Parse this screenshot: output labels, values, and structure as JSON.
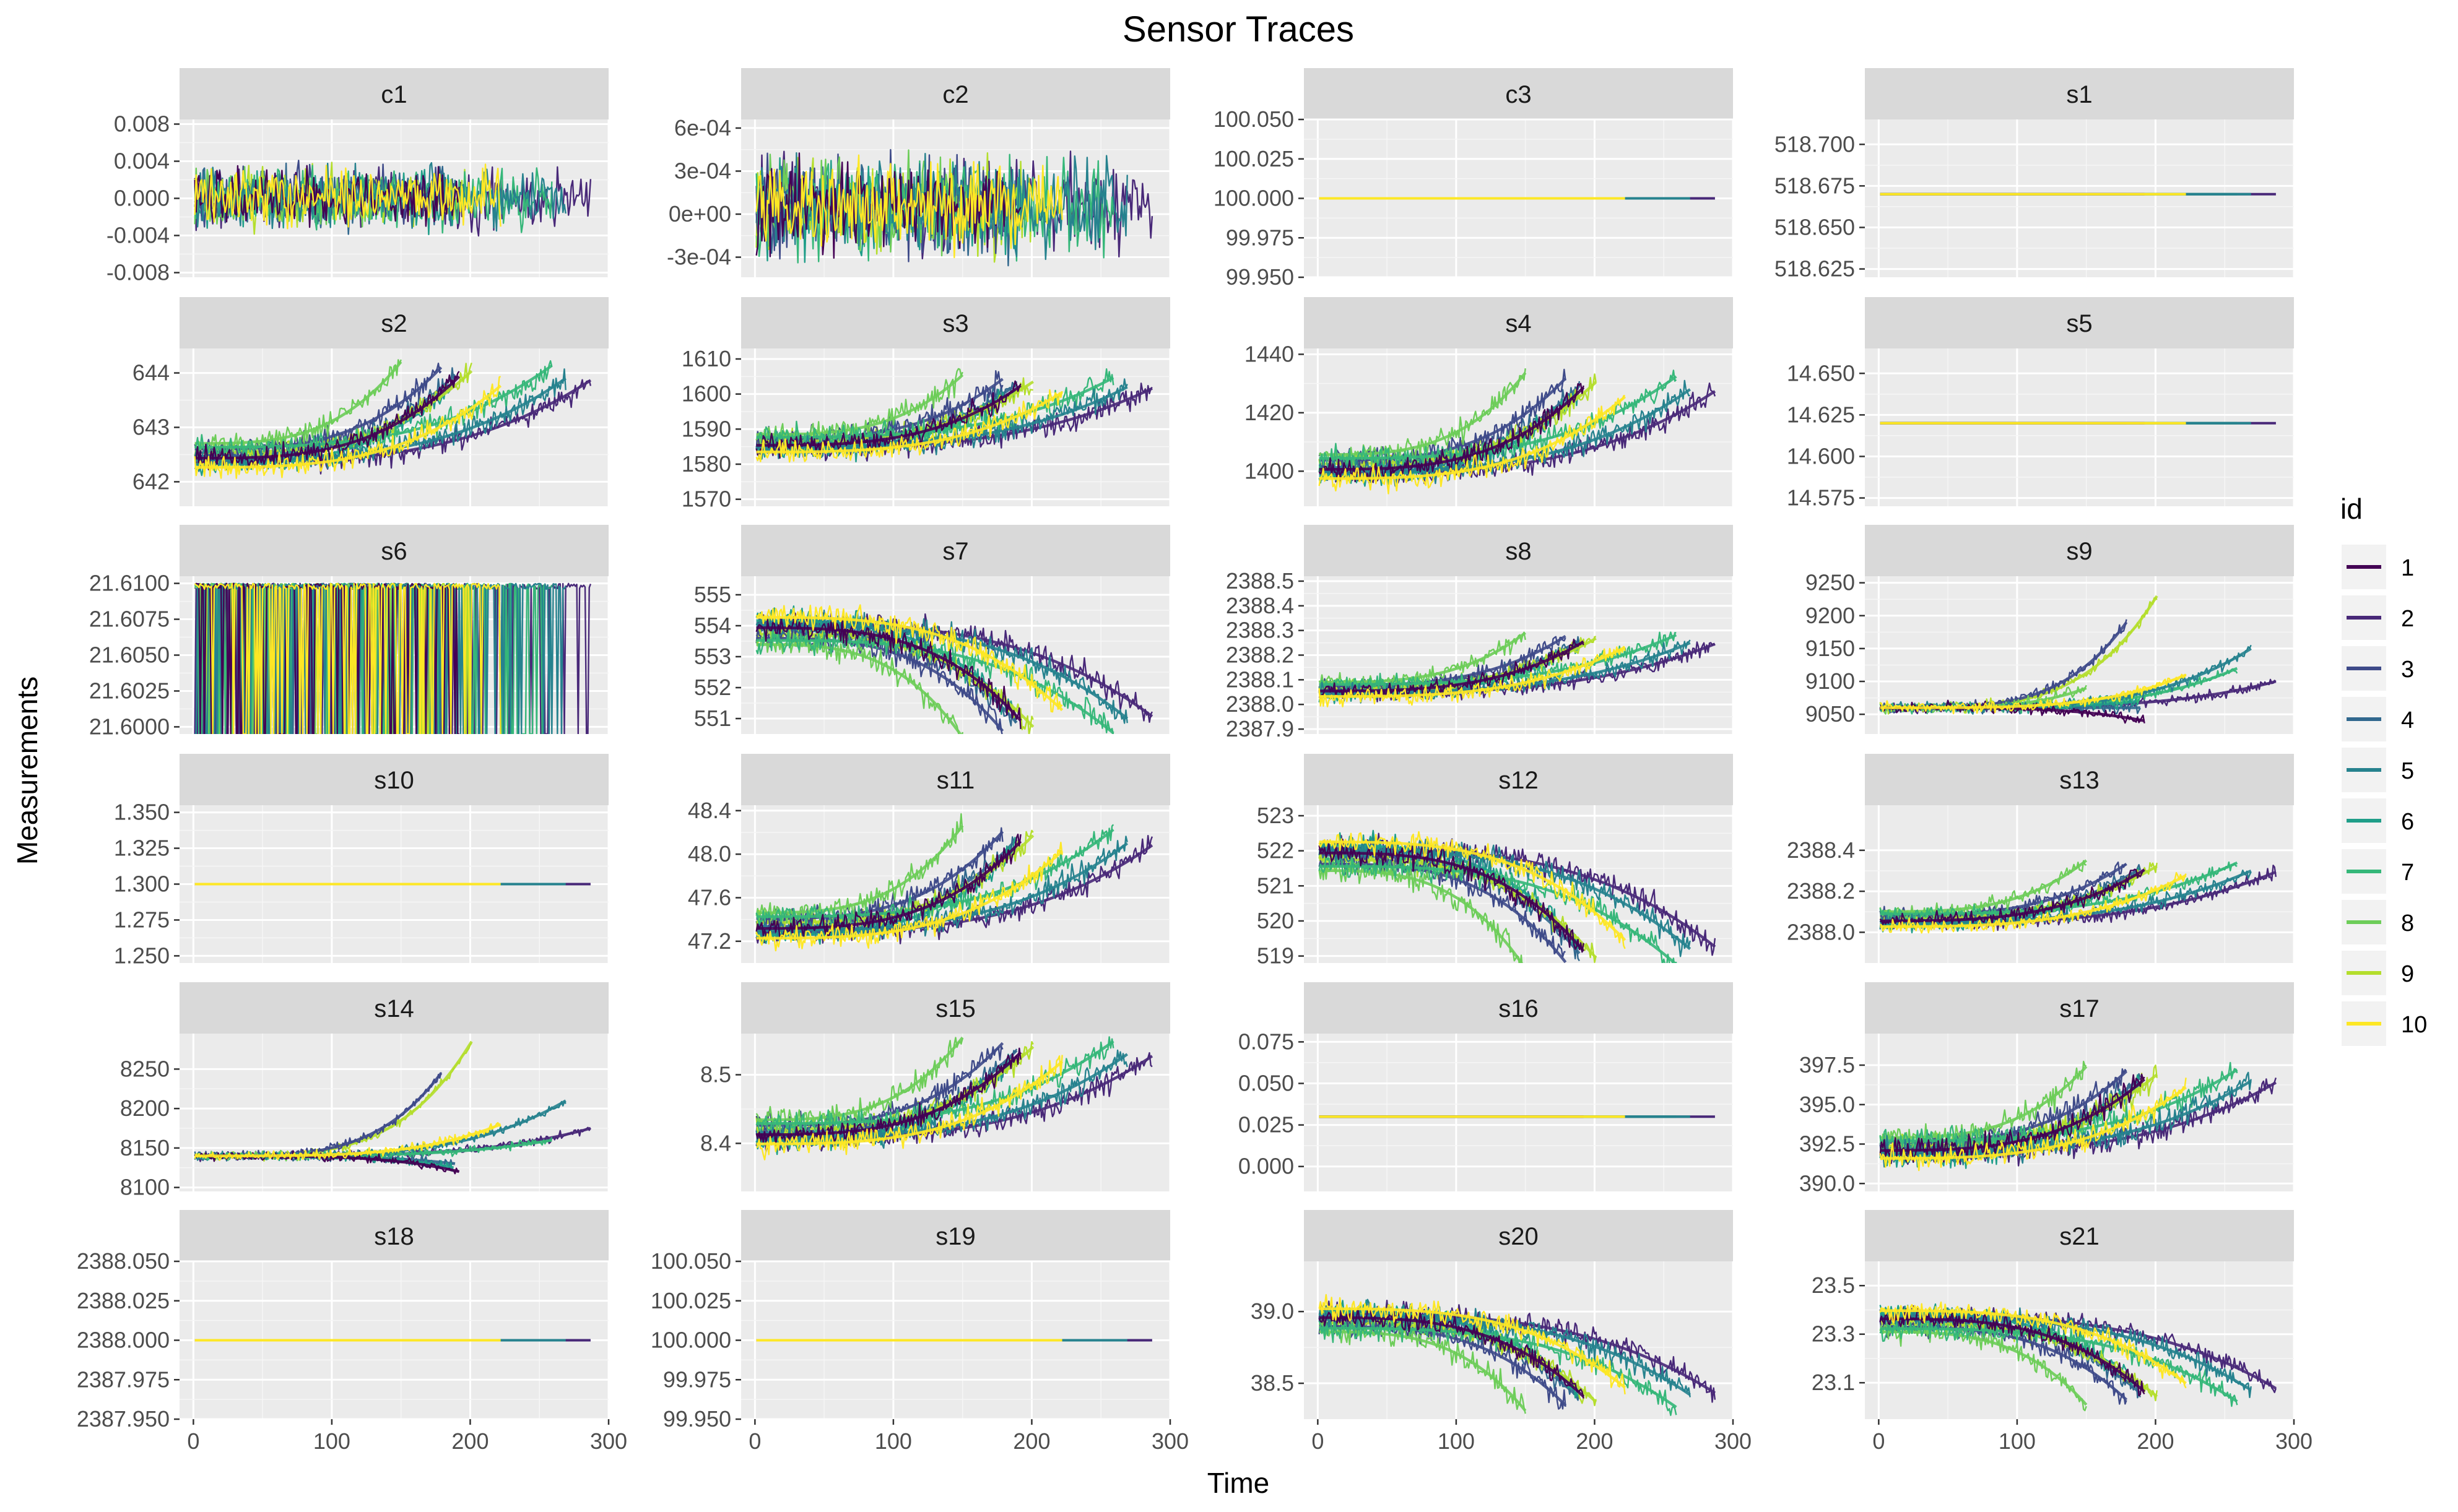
{
  "chart_data": {
    "type": "line",
    "title": "Sensor Traces",
    "xlabel": "Time",
    "ylabel": "Measurements",
    "xlim": [
      -10,
      300
    ],
    "x_ticks": [
      0,
      100,
      200,
      300
    ],
    "x_tick_labels": [
      "0",
      "100",
      "200",
      "300"
    ],
    "legend": {
      "title": "id",
      "position": "right",
      "entries": [
        "1",
        "2",
        "3",
        "4",
        "5",
        "6",
        "7",
        "8",
        "9",
        "10"
      ],
      "colors": [
        "#440154",
        "#482878",
        "#3E4A89",
        "#31688E",
        "#26828E",
        "#1F9E89",
        "#35B779",
        "#6DCD59",
        "#B4DE2C",
        "#FDE725"
      ]
    },
    "series_lengths": [
      192,
      287,
      179,
      189,
      269,
      188,
      259,
      150,
      201,
      222
    ],
    "panels": [
      {
        "name": "c1",
        "kind": "noise",
        "ylim": [
          -0.0085,
          0.0085
        ],
        "ticks": [
          -0.008,
          -0.004,
          0.0,
          0.004,
          0.008
        ],
        "tick_labels": [
          "-0.008",
          "-0.004",
          "0.000",
          "0.004",
          "0.008"
        ],
        "base": 0.0,
        "amp": 0.003
      },
      {
        "name": "c2",
        "kind": "noise",
        "ylim": [
          -0.00044,
          0.00066
        ],
        "ticks": [
          -0.0003,
          0.0,
          0.0003,
          0.0006
        ],
        "tick_labels": [
          "-3e-04",
          "0e+00",
          "3e-04",
          "6e-04"
        ],
        "base": 5e-05,
        "amp": 0.0003
      },
      {
        "name": "c3",
        "kind": "flat",
        "ylim": [
          99.95,
          100.05
        ],
        "ticks": [
          99.95,
          99.975,
          100.0,
          100.025,
          100.05
        ],
        "tick_labels": [
          "99.950",
          "99.975",
          "100.000",
          "100.025",
          "100.050"
        ],
        "base": 100.0
      },
      {
        "name": "s1",
        "kind": "flat",
        "ylim": [
          518.62,
          518.715
        ],
        "ticks": [
          518.625,
          518.65,
          518.675,
          518.7
        ],
        "tick_labels": [
          "518.625",
          "518.650",
          "518.675",
          "518.700"
        ],
        "base": 518.67
      },
      {
        "name": "s2",
        "kind": "rise",
        "ylim": [
          641.55,
          644.45
        ],
        "ticks": [
          642,
          643,
          644
        ],
        "tick_labels": [
          "642",
          "643",
          "644"
        ],
        "base": 642.4,
        "delta": 1.5,
        "noise": 0.3
      },
      {
        "name": "s3",
        "kind": "rise",
        "ylim": [
          1568,
          1613
        ],
        "ticks": [
          1570,
          1580,
          1590,
          1600,
          1610
        ],
        "tick_labels": [
          "1570",
          "1580",
          "1590",
          "1600",
          "1610"
        ],
        "base": 1585,
        "delta": 17,
        "noise": 5
      },
      {
        "name": "s4",
        "kind": "rise",
        "ylim": [
          1388,
          1442
        ],
        "ticks": [
          1400,
          1420,
          1440
        ],
        "tick_labels": [
          "1400",
          "1420",
          "1440"
        ],
        "base": 1400,
        "delta": 28,
        "noise": 6
      },
      {
        "name": "s5",
        "kind": "flat",
        "ylim": [
          14.57,
          14.665
        ],
        "ticks": [
          14.575,
          14.6,
          14.625,
          14.65
        ],
        "tick_labels": [
          "14.575",
          "14.600",
          "14.625",
          "14.650"
        ],
        "base": 14.62
      },
      {
        "name": "s6",
        "kind": "s6",
        "ylim": [
          21.5995,
          21.6105
        ],
        "ticks": [
          21.6,
          21.6025,
          21.605,
          21.6075,
          21.61
        ],
        "tick_labels": [
          "21.6000",
          "21.6025",
          "21.6050",
          "21.6075",
          "21.6100"
        ],
        "base": 21.61
      },
      {
        "name": "s7",
        "kind": "fall",
        "ylim": [
          550.5,
          555.6
        ],
        "ticks": [
          551,
          552,
          553,
          554,
          555
        ],
        "tick_labels": [
          "551",
          "552",
          "553",
          "554",
          "555"
        ],
        "base": 554.0,
        "delta": 3.0,
        "noise": 0.6
      },
      {
        "name": "s8",
        "kind": "rise",
        "ylim": [
          2387.88,
          2388.52
        ],
        "ticks": [
          2387.9,
          2388.0,
          2388.1,
          2388.2,
          2388.3,
          2388.4,
          2388.5
        ],
        "tick_labels": [
          "2387.9",
          "2388.0",
          "2388.1",
          "2388.2",
          "2388.3",
          "2388.4",
          "2388.5"
        ],
        "base": 2388.05,
        "delta": 0.2,
        "noise": 0.05
      },
      {
        "name": "s9",
        "kind": "exp",
        "ylim": [
          9020,
          9260
        ],
        "ticks": [
          9050,
          9100,
          9150,
          9200,
          9250
        ],
        "tick_labels": [
          "9050",
          "9100",
          "9150",
          "9200",
          "9250"
        ],
        "base": 9060,
        "noise": 12,
        "ends": [
          9040,
          9100,
          9190,
          9060,
          9150,
          9070,
          9120,
          9090,
          9230,
          9110
        ]
      },
      {
        "name": "s10",
        "kind": "flat",
        "ylim": [
          1.245,
          1.355
        ],
        "ticks": [
          1.25,
          1.275,
          1.3,
          1.325,
          1.35
        ],
        "tick_labels": [
          "1.250",
          "1.275",
          "1.300",
          "1.325",
          "1.350"
        ],
        "base": 1.3
      },
      {
        "name": "s11",
        "kind": "rise",
        "ylim": [
          47.0,
          48.45
        ],
        "ticks": [
          47.2,
          47.6,
          48.0,
          48.4
        ],
        "tick_labels": [
          "47.2",
          "47.6",
          "48.0",
          "48.4"
        ],
        "base": 47.3,
        "delta": 0.8,
        "noise": 0.15
      },
      {
        "name": "s12",
        "kind": "fall",
        "ylim": [
          518.8,
          523.3
        ],
        "ticks": [
          519,
          520,
          521,
          522,
          523
        ],
        "tick_labels": [
          "519",
          "520",
          "521",
          "522",
          "523"
        ],
        "base": 522.0,
        "delta": 2.8,
        "noise": 0.5
      },
      {
        "name": "s13",
        "kind": "rise",
        "ylim": [
          2387.85,
          2388.62
        ],
        "ticks": [
          2388.0,
          2388.2,
          2388.4
        ],
        "tick_labels": [
          "2388.0",
          "2388.2",
          "2388.4"
        ],
        "base": 2388.05,
        "delta": 0.25,
        "noise": 0.05
      },
      {
        "name": "s14",
        "kind": "exp",
        "ylim": [
          8095,
          8295
        ],
        "ticks": [
          8100,
          8150,
          8200,
          8250
        ],
        "tick_labels": [
          "8100",
          "8150",
          "8200",
          "8250"
        ],
        "base": 8140,
        "noise": 8,
        "ends": [
          8120,
          8175,
          8245,
          8130,
          8210,
          8125,
          8160,
          8145,
          8285,
          8180
        ]
      },
      {
        "name": "s15",
        "kind": "rise",
        "ylim": [
          8.33,
          8.56
        ],
        "ticks": [
          8.4,
          8.5
        ],
        "tick_labels": [
          "8.4",
          "8.5"
        ],
        "base": 8.41,
        "delta": 0.12,
        "noise": 0.025
      },
      {
        "name": "s16",
        "kind": "flat",
        "ylim": [
          -0.015,
          0.08
        ],
        "ticks": [
          0.0,
          0.025,
          0.05,
          0.075
        ],
        "tick_labels": [
          "0.000",
          "0.025",
          "0.050",
          "0.075"
        ],
        "base": 0.03
      },
      {
        "name": "s17",
        "kind": "rise",
        "ylim": [
          389.5,
          399.5
        ],
        "ticks": [
          390.0,
          392.5,
          395.0,
          397.5
        ],
        "tick_labels": [
          "390.0",
          "392.5",
          "395.0",
          "397.5"
        ],
        "base": 392.0,
        "delta": 4.5,
        "noise": 1.2
      },
      {
        "name": "s18",
        "kind": "flat",
        "ylim": [
          2387.95,
          2388.05
        ],
        "ticks": [
          2387.95,
          2387.975,
          2388.0,
          2388.025,
          2388.05
        ],
        "tick_labels": [
          "2387.950",
          "2387.975",
          "2388.000",
          "2388.025",
          "2388.050"
        ],
        "base": 2388.0
      },
      {
        "name": "s19",
        "kind": "flat",
        "ylim": [
          99.95,
          100.05
        ],
        "ticks": [
          99.95,
          99.975,
          100.0,
          100.025,
          100.05
        ],
        "tick_labels": [
          "99.950",
          "99.975",
          "100.000",
          "100.025",
          "100.050"
        ],
        "base": 100.0
      },
      {
        "name": "s20",
        "kind": "fall",
        "ylim": [
          38.25,
          39.35
        ],
        "ticks": [
          38.5,
          39.0
        ],
        "tick_labels": [
          "38.5",
          "39.0"
        ],
        "base": 38.97,
        "delta": 0.55,
        "noise": 0.12
      },
      {
        "name": "s21",
        "kind": "fall",
        "ylim": [
          22.95,
          23.6
        ],
        "ticks": [
          23.1,
          23.3,
          23.5
        ],
        "tick_labels": [
          "23.1",
          "23.3",
          "23.5"
        ],
        "base": 23.37,
        "delta": 0.3,
        "noise": 0.06
      }
    ]
  }
}
